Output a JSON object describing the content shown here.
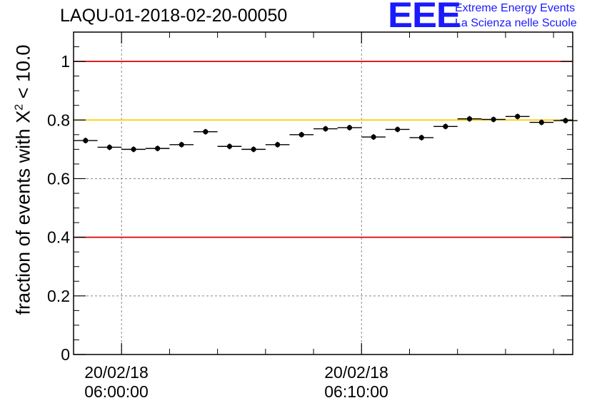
{
  "title": "LAQU-01-2018-02-20-00050",
  "logo": {
    "mark": "EEE",
    "line1": "Extreme Energy Events",
    "line2": "La Scienza nelle Scuole",
    "color": "#1a1aff"
  },
  "chart_data": {
    "type": "scatter",
    "title": "LAQU-01-2018-02-20-00050",
    "ylabel": {
      "prefix": "fraction of events with ",
      "symbol": "X",
      "superscript": "2",
      "suffix": " < 10.0"
    },
    "xlabel": "",
    "ylim": [
      0,
      1.1
    ],
    "yticks": [
      0,
      0.2,
      0.4,
      0.6,
      0.8,
      1
    ],
    "ytick_labels": [
      "0",
      "0.2",
      "0.4",
      "0.6",
      "0.8",
      "1"
    ],
    "xlim_minutes": [
      -2.0,
      18.8
    ],
    "xticks": [
      {
        "minute": 0,
        "line1": "20/02/18",
        "line2": "06:00:00"
      },
      {
        "minute": 10,
        "line1": "20/02/18",
        "line2": "06:10:00"
      }
    ],
    "grid": true,
    "reference_lines": [
      {
        "y": 1.0,
        "color": "#dd0000"
      },
      {
        "y": 0.8,
        "color": "#ffcc00"
      },
      {
        "y": 0.4,
        "color": "#dd0000"
      }
    ],
    "bin_width_minutes": 1.0,
    "series": [
      {
        "name": "fraction",
        "x_minutes": [
          -1.5,
          -0.5,
          0.5,
          1.5,
          2.5,
          3.5,
          4.5,
          5.5,
          6.5,
          7.5,
          8.5,
          9.5,
          10.5,
          11.5,
          12.5,
          13.5,
          14.5,
          15.5,
          16.5,
          17.5,
          18.5
        ],
        "values": [
          0.73,
          0.707,
          0.7,
          0.703,
          0.716,
          0.76,
          0.71,
          0.7,
          0.716,
          0.75,
          0.77,
          0.774,
          0.742,
          0.768,
          0.74,
          0.778,
          0.804,
          0.802,
          0.812,
          0.792,
          0.798
        ]
      }
    ]
  }
}
